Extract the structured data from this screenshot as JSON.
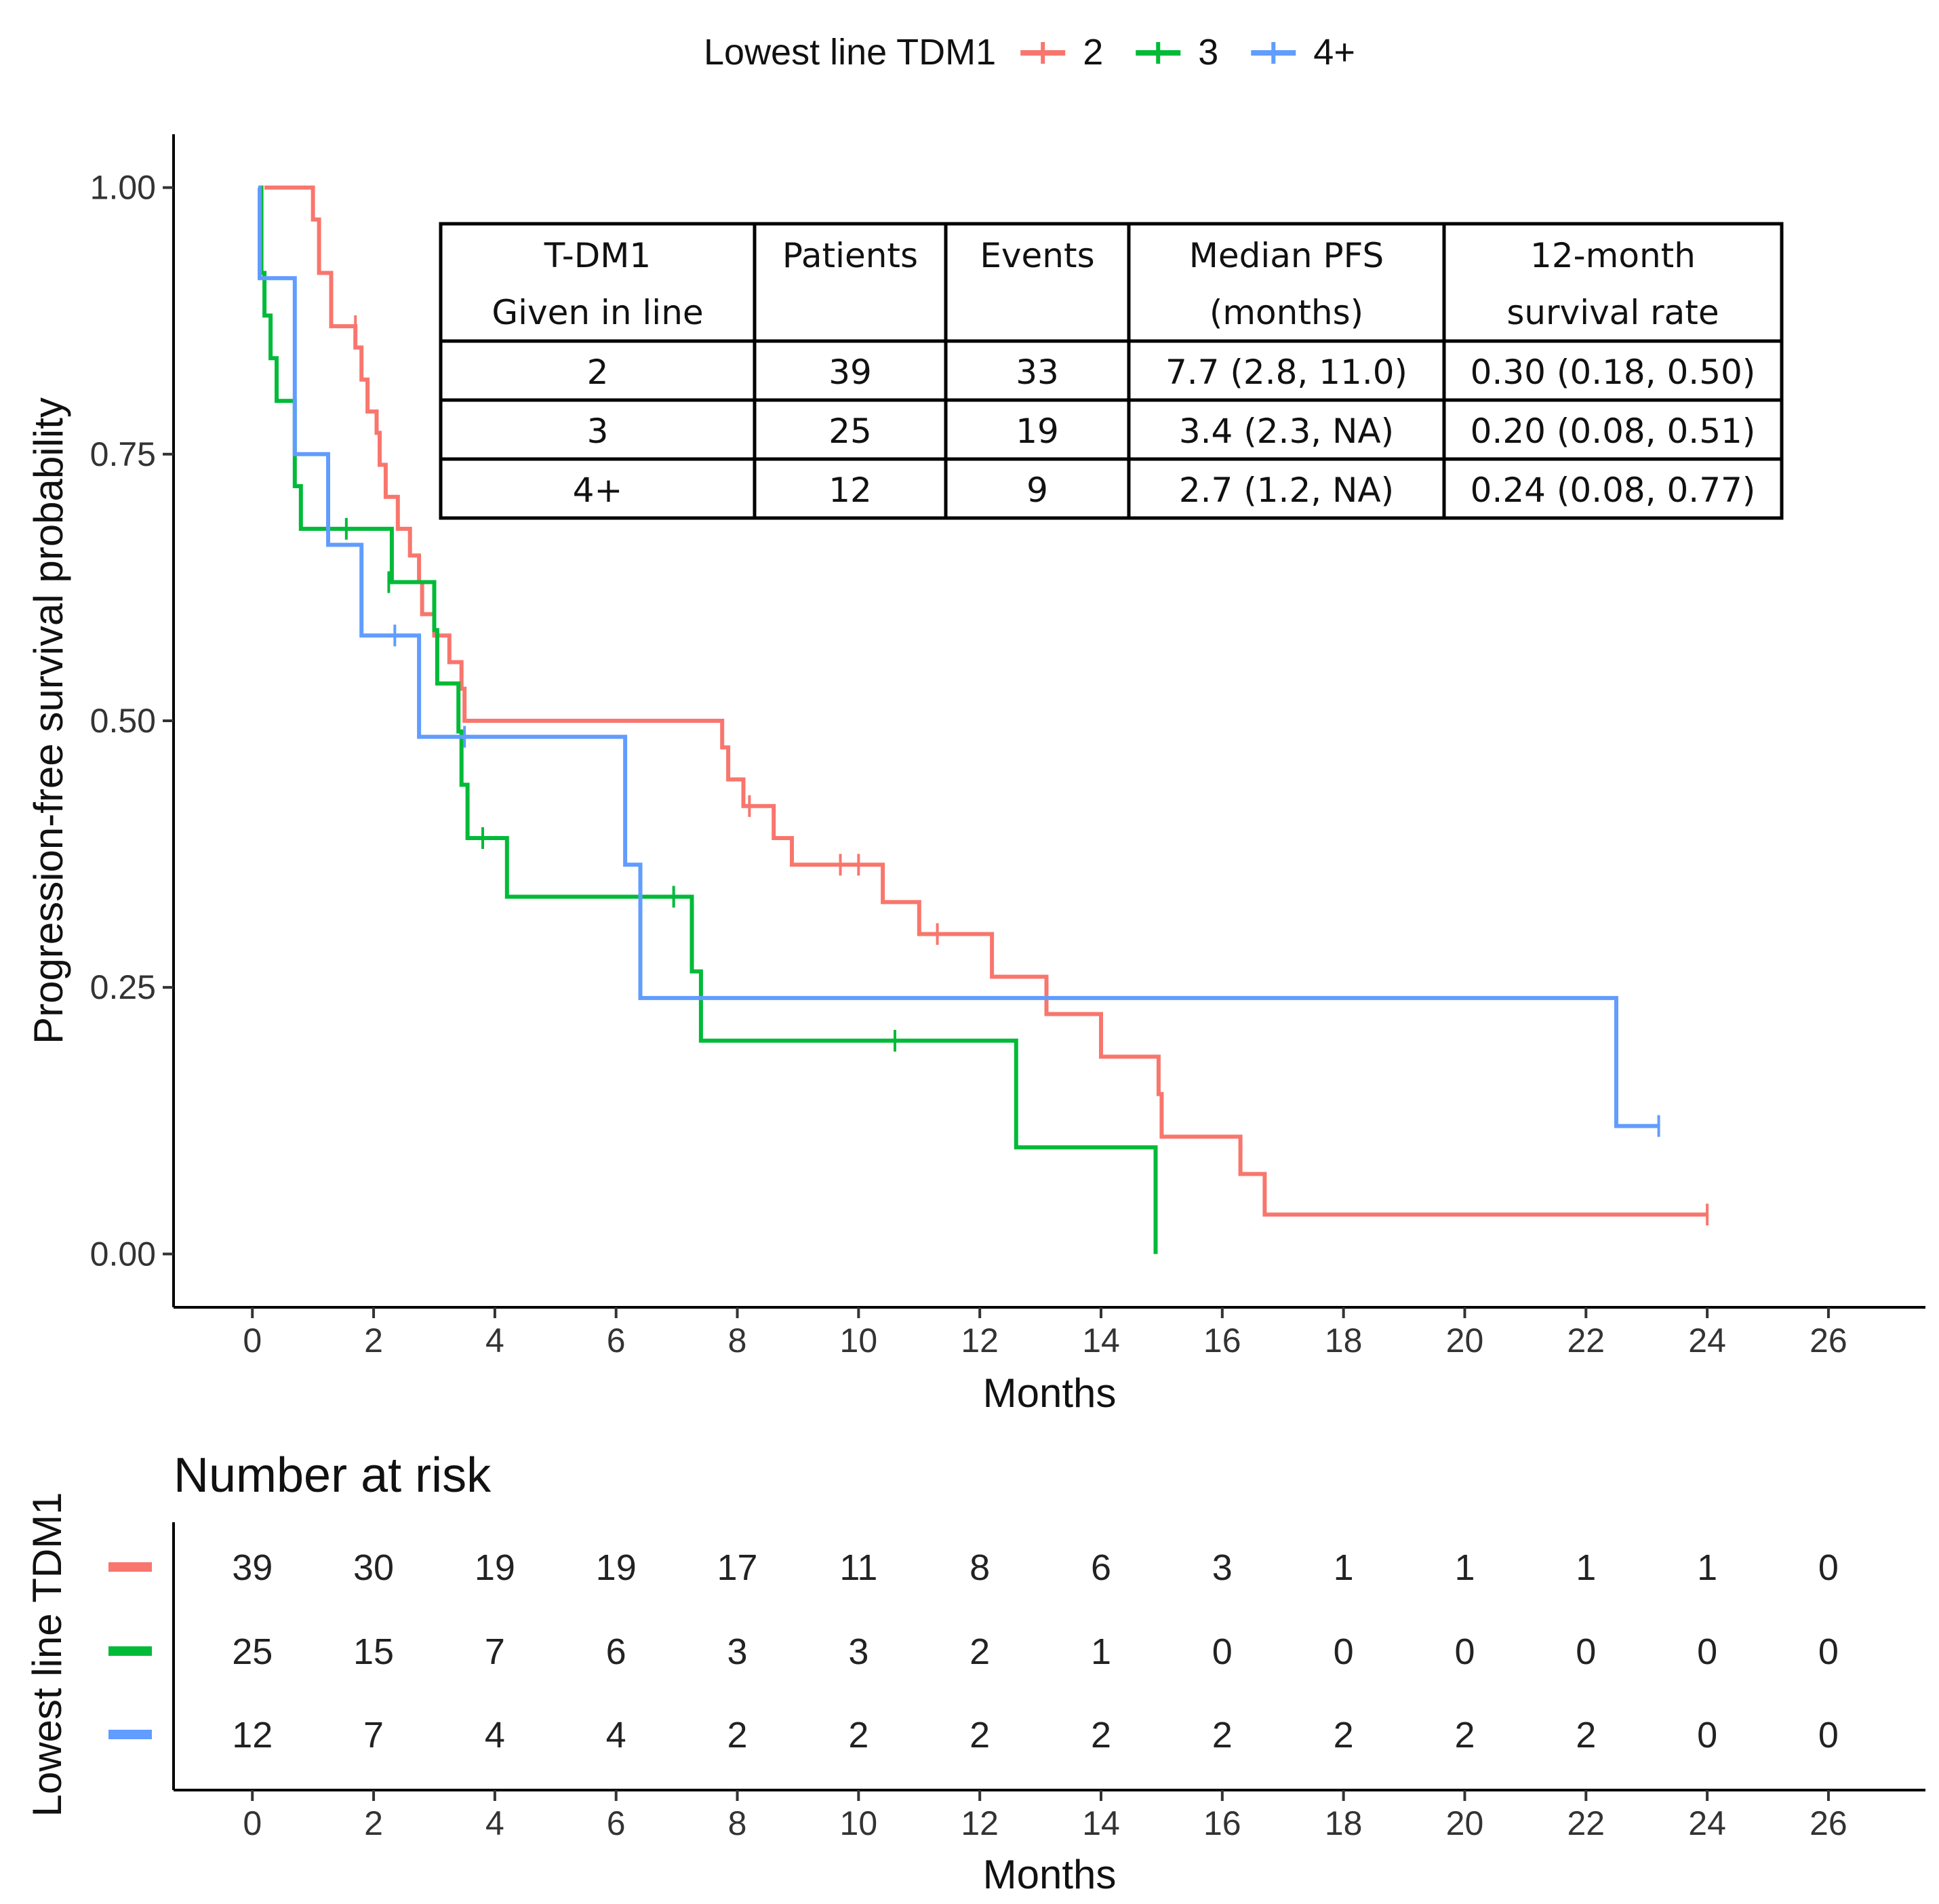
{
  "chart_data": {
    "type": "line",
    "subtype": "kaplan-meier",
    "legend": {
      "title": "Lowest line TDM1",
      "position": "top",
      "entries": [
        "2",
        "3",
        "4+"
      ]
    },
    "xlabel": "Months",
    "ylabel": "Progression-free survival probability",
    "xlim": [
      -1.3,
      27.6
    ],
    "ylim": [
      -0.05,
      1.05
    ],
    "xticks": [
      "0",
      "2",
      "4",
      "6",
      "8",
      "10",
      "12",
      "14",
      "16",
      "18",
      "20",
      "22",
      "24",
      "26"
    ],
    "xtick_values": [
      0,
      2,
      4,
      6,
      8,
      10,
      12,
      14,
      16,
      18,
      20,
      22,
      24,
      26
    ],
    "yticks": [
      "0.00",
      "0.25",
      "0.50",
      "0.75",
      "1.00"
    ],
    "ytick_values": [
      0,
      0.25,
      0.5,
      0.75,
      1.0
    ],
    "series": [
      {
        "name": "2",
        "color": "#f8766d",
        "steps": [
          [
            0.2,
            1.0
          ],
          [
            1.0,
            0.97
          ],
          [
            1.1,
            0.92
          ],
          [
            1.3,
            0.87
          ],
          [
            1.7,
            0.85
          ],
          [
            1.8,
            0.82
          ],
          [
            1.9,
            0.79
          ],
          [
            2.05,
            0.77
          ],
          [
            2.1,
            0.74
          ],
          [
            2.2,
            0.71
          ],
          [
            2.4,
            0.68
          ],
          [
            2.6,
            0.655
          ],
          [
            2.75,
            0.63
          ],
          [
            2.8,
            0.6
          ],
          [
            3.0,
            0.58
          ],
          [
            3.25,
            0.555
          ],
          [
            3.45,
            0.53
          ],
          [
            3.5,
            0.5
          ],
          [
            7.75,
            0.475
          ],
          [
            7.85,
            0.445
          ],
          [
            8.1,
            0.42
          ],
          [
            8.6,
            0.39
          ],
          [
            8.9,
            0.365
          ],
          [
            10.4,
            0.33
          ],
          [
            11.0,
            0.3
          ],
          [
            12.2,
            0.26
          ],
          [
            13.1,
            0.225
          ],
          [
            14.0,
            0.185
          ],
          [
            14.95,
            0.15
          ],
          [
            15.0,
            0.11
          ],
          [
            16.3,
            0.075
          ],
          [
            16.7,
            0.037
          ],
          [
            24.0,
            0.037
          ]
        ],
        "censored": [
          [
            1.7,
            0.87
          ],
          [
            8.2,
            0.42
          ],
          [
            9.7,
            0.365
          ],
          [
            10.0,
            0.365
          ],
          [
            11.3,
            0.3
          ],
          [
            24.0,
            0.037
          ]
        ]
      },
      {
        "name": "3",
        "color": "#00ba38",
        "steps": [
          [
            0.1,
            1.0
          ],
          [
            0.15,
            0.92
          ],
          [
            0.2,
            0.88
          ],
          [
            0.3,
            0.84
          ],
          [
            0.4,
            0.8
          ],
          [
            0.6,
            0.8
          ],
          [
            0.7,
            0.72
          ],
          [
            0.8,
            0.68
          ],
          [
            2.3,
            0.63
          ],
          [
            3.0,
            0.585
          ],
          [
            3.05,
            0.535
          ],
          [
            3.4,
            0.49
          ],
          [
            3.45,
            0.44
          ],
          [
            3.55,
            0.39
          ],
          [
            4.2,
            0.335
          ],
          [
            7.25,
            0.265
          ],
          [
            7.4,
            0.2
          ],
          [
            12.6,
            0.1
          ],
          [
            14.9,
            0.0
          ]
        ],
        "censored": [
          [
            1.55,
            0.68
          ],
          [
            2.25,
            0.63
          ],
          [
            3.8,
            0.39
          ],
          [
            6.95,
            0.335
          ],
          [
            10.6,
            0.2
          ]
        ]
      },
      {
        "name": "4+",
        "color": "#619cff",
        "steps": [
          [
            0.1,
            1.0
          ],
          [
            0.12,
            0.915
          ],
          [
            0.7,
            0.75
          ],
          [
            1.25,
            0.665
          ],
          [
            1.8,
            0.58
          ],
          [
            2.75,
            0.485
          ],
          [
            6.15,
            0.365
          ],
          [
            6.4,
            0.24
          ],
          [
            22.5,
            0.12
          ],
          [
            23.2,
            0.12
          ]
        ],
        "censored": [
          [
            2.35,
            0.58
          ],
          [
            3.5,
            0.485
          ],
          [
            23.2,
            0.12
          ]
        ]
      }
    ],
    "summary_table": {
      "header_rows": [
        [
          "T-DM1",
          "Patients",
          "Events",
          "Median PFS",
          "12-month"
        ],
        [
          "Given in line",
          "",
          "",
          "(months)",
          "survival rate"
        ]
      ],
      "rows": [
        [
          "2",
          "39",
          "33",
          "7.7 (2.8, 11.0)",
          "0.30 (0.18, 0.50)"
        ],
        [
          "3",
          "25",
          "19",
          "3.4 (2.3, NA)",
          "0.20 (0.08, 0.51)"
        ],
        [
          "4+",
          "12",
          "9",
          "2.7 (1.2, NA)",
          "0.24 (0.08, 0.77)"
        ]
      ]
    },
    "risk_table": {
      "title": "Number at risk",
      "ylabel": "Lowest line TDM1",
      "xlabel": "Months",
      "times": [
        0,
        2,
        4,
        6,
        8,
        10,
        12,
        14,
        16,
        18,
        20,
        22,
        24,
        26
      ],
      "rows": [
        {
          "group": "2",
          "color": "#f8766d",
          "counts": [
            "39",
            "30",
            "19",
            "19",
            "17",
            "11",
            "8",
            "6",
            "3",
            "1",
            "1",
            "1",
            "1",
            "0"
          ]
        },
        {
          "group": "3",
          "color": "#00ba38",
          "counts": [
            "25",
            "15",
            "7",
            "6",
            "3",
            "3",
            "2",
            "1",
            "0",
            "0",
            "0",
            "0",
            "0",
            "0"
          ]
        },
        {
          "group": "4+",
          "color": "#619cff",
          "counts": [
            "12",
            "7",
            "4",
            "4",
            "2",
            "2",
            "2",
            "2",
            "2",
            "2",
            "2",
            "2",
            "0",
            "0"
          ]
        }
      ]
    }
  }
}
